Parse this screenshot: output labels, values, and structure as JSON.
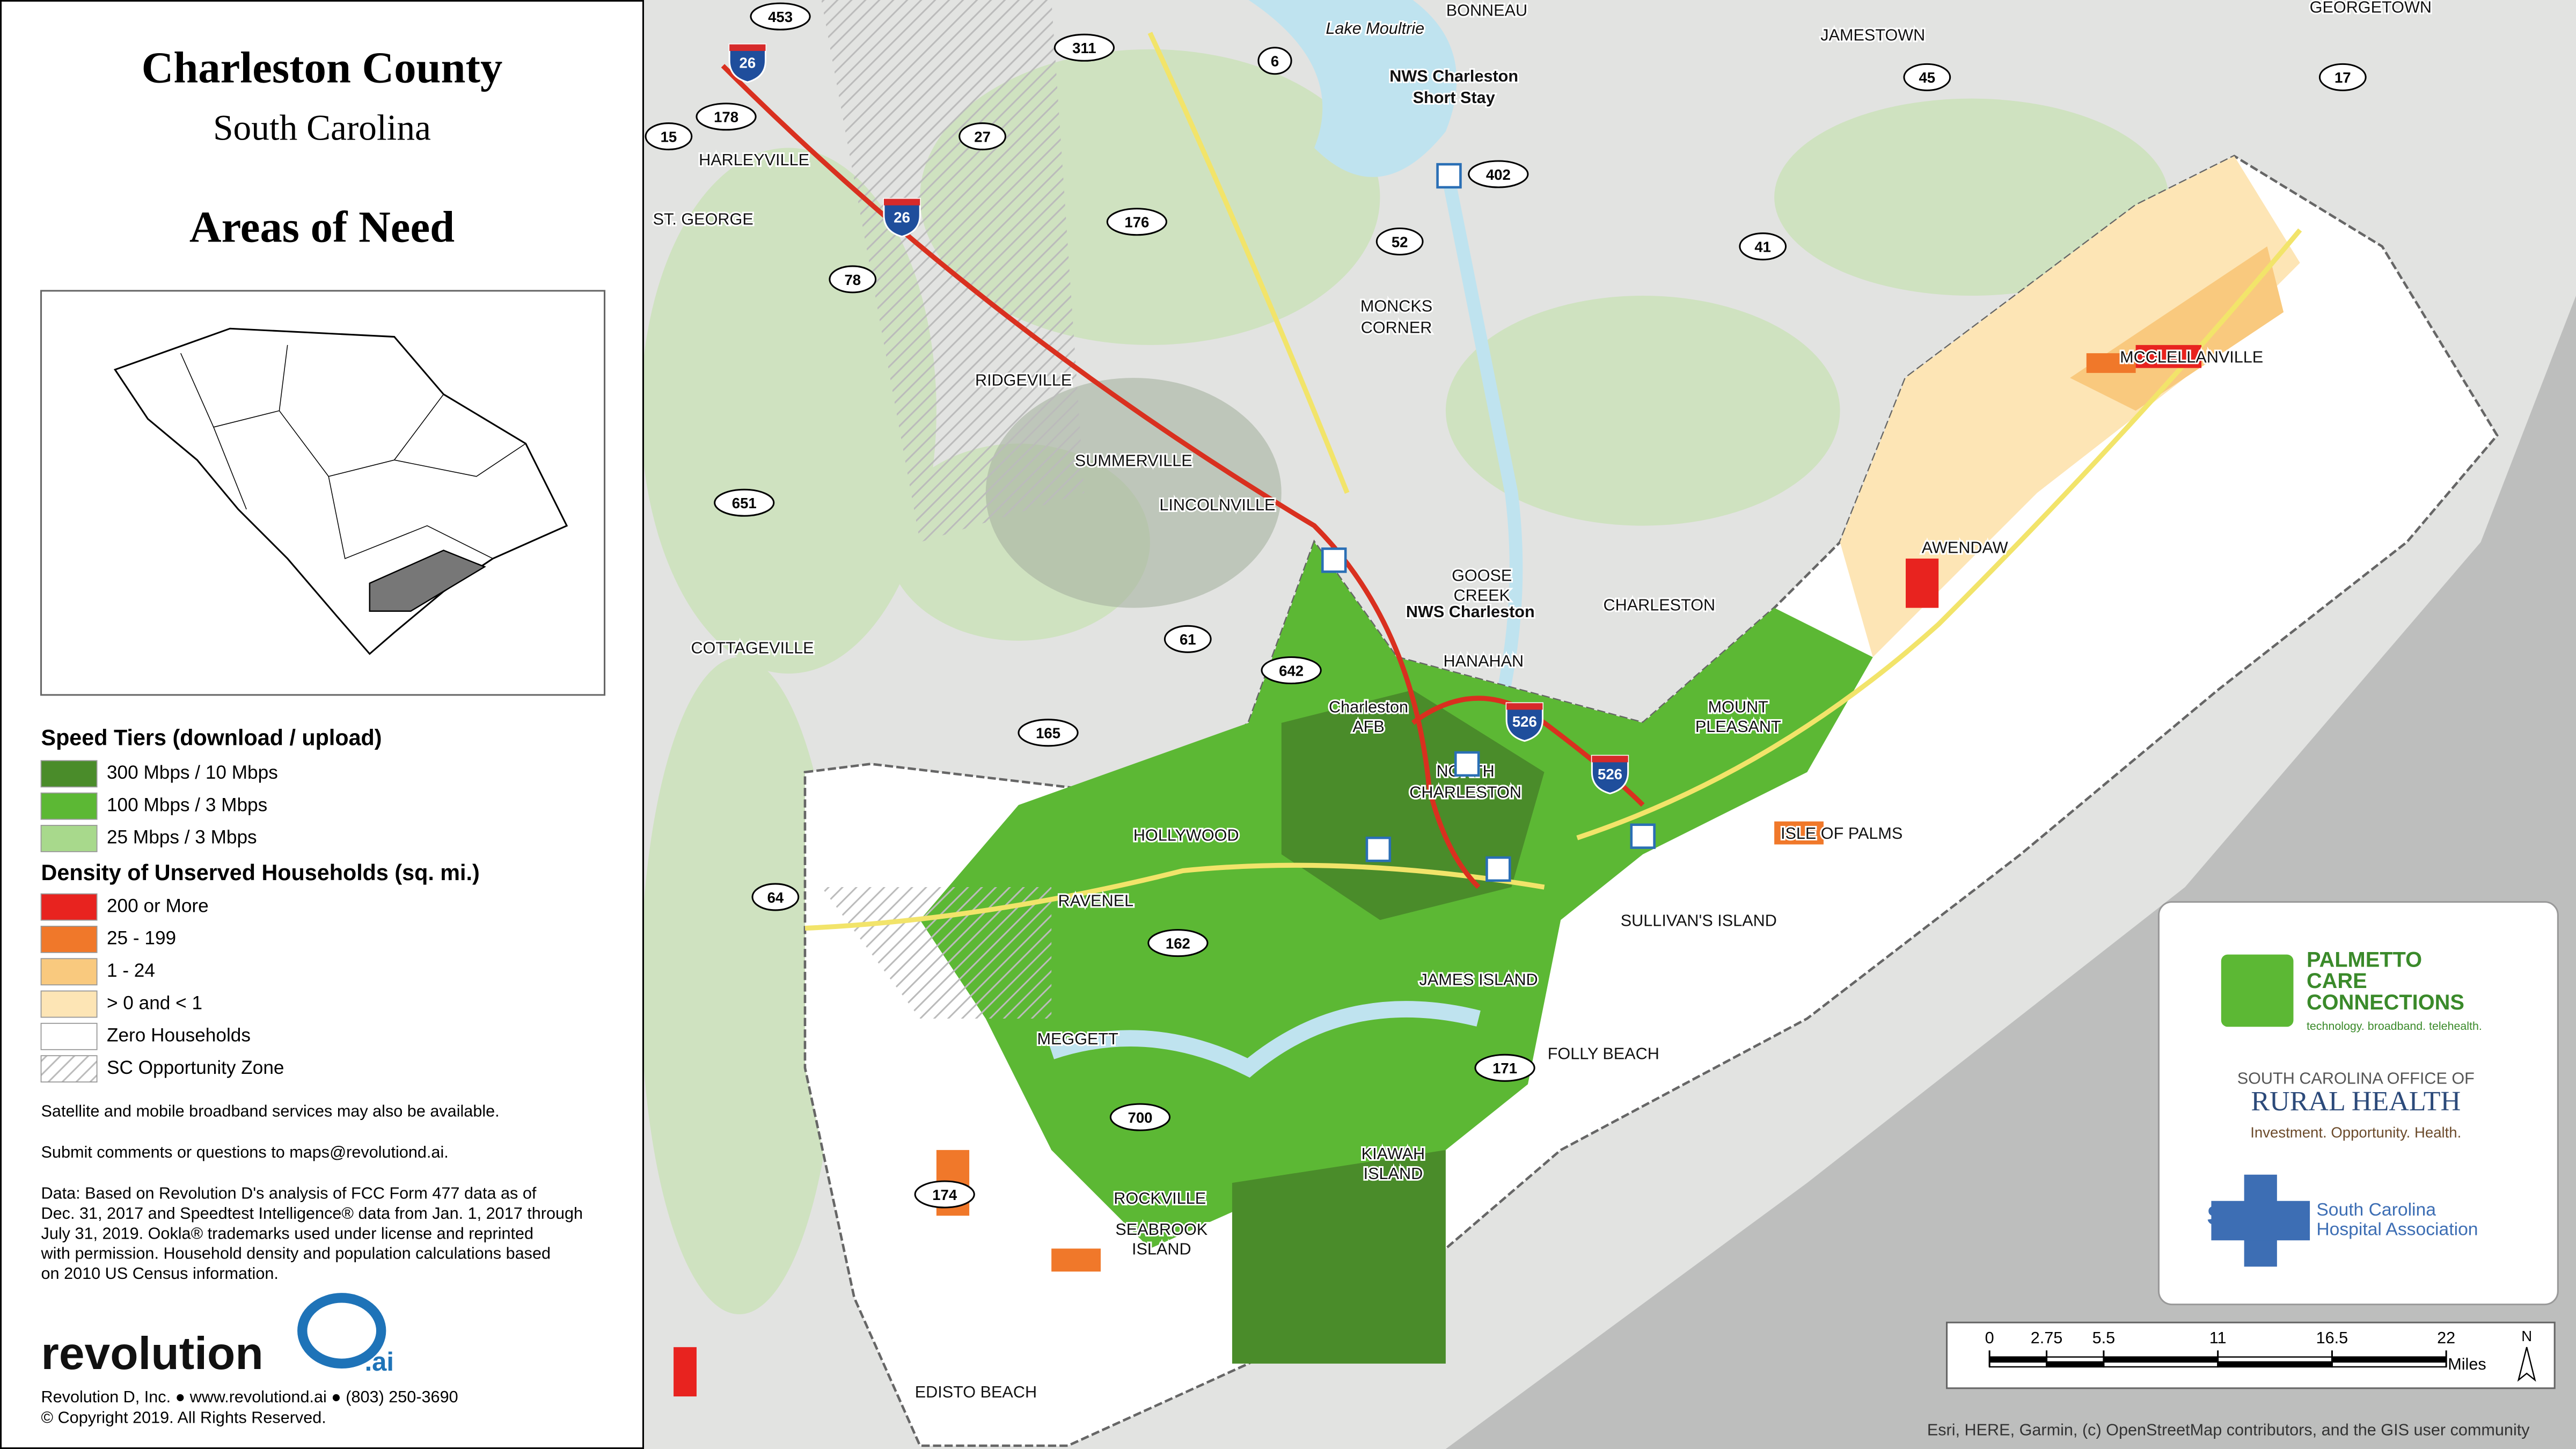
{
  "title": "Charleston County",
  "subtitle": "South Carolina",
  "heading": "Areas of Need",
  "legend": {
    "speed_title": "Speed Tiers (download / upload)",
    "speed_items": [
      {
        "label": "300 Mbps / 10 Mbps",
        "color": "#4a8c2a"
      },
      {
        "label": "100 Mbps / 3 Mbps",
        "color": "#5cb834"
      },
      {
        "label": "25 Mbps / 3 Mbps",
        "color": "#a8d98c"
      }
    ],
    "density_title": "Density of Unserved Households (sq. mi.)",
    "density_items": [
      {
        "label": "200 or More",
        "color": "#e8231f"
      },
      {
        "label": "25 - 199",
        "color": "#f0782a"
      },
      {
        "label": "1 - 24",
        "color": "#f9c97e"
      },
      {
        "label": "> 0 and < 1",
        "color": "#fde5b5"
      },
      {
        "label": "Zero Households",
        "color": "#ffffff"
      },
      {
        "label": "SC Opportunity Zone",
        "color": "#ffffff",
        "pattern": "hatch"
      }
    ]
  },
  "notes": [
    "Satellite and mobile broadband services may also be available.",
    "Submit comments or questions to maps@revolutiond.ai."
  ],
  "data_note": [
    "Data: Based on Revolution D's analysis of FCC Form 477 data as of",
    "Dec. 31, 2017 and Speedtest Intelligence® data from Jan. 1, 2017 through",
    "July 31, 2019. Ookla® trademarks used under license and reprinted",
    "with permission.  Household density and population calculations based",
    "on 2010 US Census information."
  ],
  "logo": {
    "name": "revolution",
    "suffix": ".ai"
  },
  "footer": [
    "Revolution D, Inc. ● www.revolutiond.ai ● (803) 250-3690",
    "© Copyright 2019. All Rights Reserved."
  ],
  "map_labels": [
    "BONNEAU",
    "Lake Moultrie",
    "JAMESTOWN",
    "GEORGETOWN",
    "NWS Charleston",
    "Short Stay",
    "HARLEYVILLE",
    "ST. GEORGE",
    "MONCKS",
    "CORNER",
    "RIDGEVILLE",
    "SUMMERVILLE",
    "LINCOLNVILLE",
    "MCCLELLANVILLE",
    "AWENDAW",
    "GOOSE",
    "CREEK",
    "NWS Charleston",
    "CHARLESTON",
    "COTTAGEVILLE",
    "HANAHAN",
    "Charleston",
    "AFB",
    "MOUNT",
    "PLEASANT",
    "NORTH",
    "CHARLESTON",
    "HOLLYWOOD",
    "ISLE OF PALMS",
    "RAVENEL",
    "SULLIVAN'S ISLAND",
    "JAMES ISLAND",
    "MEGGETT",
    "FOLLY BEACH",
    "KIAWAH",
    "ISLAND",
    "ROCKVILLE",
    "SEABROOK",
    "ISLAND",
    "EDISTO BEACH"
  ],
  "shields": [
    "453",
    "26",
    "311",
    "6",
    "178",
    "27",
    "15",
    "45",
    "17",
    "402",
    "26",
    "176",
    "52",
    "41",
    "78",
    "651",
    "61",
    "642",
    "165",
    "526",
    "526",
    "64",
    "162",
    "171",
    "700",
    "174"
  ],
  "interstates": [
    "26",
    "526"
  ],
  "partners": {
    "pcc": [
      "PALMETTO",
      "CARE",
      "CONNECTIONS",
      "technology. broadband. telehealth."
    ],
    "rural": [
      "SOUTH CAROLINA OFFICE OF",
      "RURAL HEALTH",
      "Investment. Opportunity. Health."
    ],
    "scha": [
      "SCHA",
      "South Carolina",
      "Hospital Association"
    ]
  },
  "scale_bar": {
    "ticks": [
      0,
      2.75,
      5.5,
      11,
      16.5,
      22
    ],
    "unit": "Miles",
    "north": "N"
  },
  "attribution": "Esri, HERE, Garmin, (c) OpenStreetMap contributors, and the GIS user community"
}
